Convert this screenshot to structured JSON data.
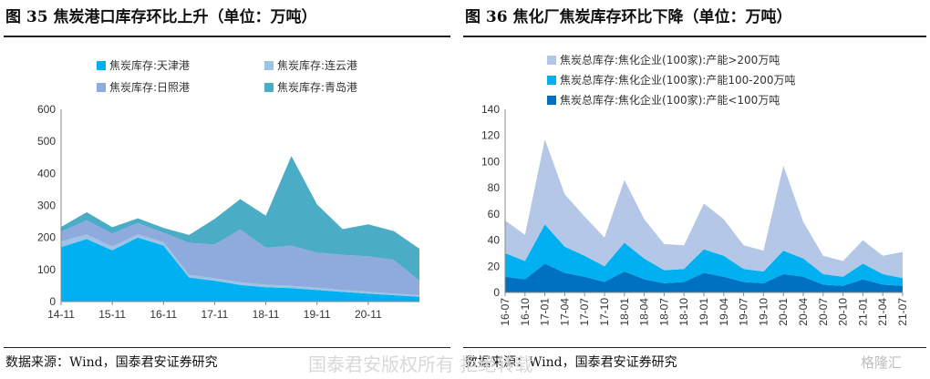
{
  "chart_data": [
    {
      "type": "area",
      "title": "图 35 焦炭港口库存环比上升（单位：万吨）",
      "source": "数据来源：Wind，国泰君安证券研究",
      "ylim": [
        0,
        600
      ],
      "yticks": [
        "0",
        "100",
        "200",
        "300",
        "400",
        "500",
        "600"
      ],
      "xticks": [
        "14-11",
        "15-11",
        "16-11",
        "17-11",
        "18-11",
        "19-11",
        "20-11"
      ],
      "x": [
        "14-11",
        "15-05",
        "15-11",
        "16-05",
        "16-11",
        "17-05",
        "17-11",
        "18-05",
        "18-11",
        "19-05",
        "19-11",
        "20-05",
        "20-11",
        "21-05",
        "21-08"
      ],
      "series": [
        {
          "name": "焦炭库存:天津港",
          "color": "#00B0F0",
          "values": [
            170,
            195,
            160,
            200,
            175,
            75,
            65,
            52,
            45,
            42,
            36,
            30,
            25,
            20,
            15
          ]
        },
        {
          "name": "焦炭库存:连云港",
          "color": "#9DC3E6",
          "values": [
            18,
            14,
            12,
            10,
            10,
            8,
            8,
            8,
            8,
            7,
            7,
            6,
            6,
            5,
            5
          ]
        },
        {
          "name": "焦炭库存:日照港",
          "color": "#8FAADC",
          "values": [
            30,
            45,
            40,
            35,
            30,
            100,
            105,
            165,
            115,
            125,
            110,
            110,
            110,
            105,
            45
          ]
        },
        {
          "name": "焦炭库存:青岛港",
          "color": "#4BACC6",
          "values": [
            15,
            25,
            20,
            15,
            15,
            25,
            80,
            95,
            100,
            280,
            150,
            80,
            100,
            90,
            100
          ]
        }
      ],
      "legend_position": "top"
    },
    {
      "type": "area",
      "title": "图 36 焦化厂焦炭库存环比下降（单位：万吨）",
      "source": "数据来源：Wind，国泰君安证券研究",
      "ylim": [
        0,
        140
      ],
      "yticks": [
        "0",
        "20",
        "40",
        "60",
        "80",
        "100",
        "120",
        "140"
      ],
      "xticks": [
        "16-07",
        "16-10",
        "17-01",
        "17-04",
        "17-07",
        "17-10",
        "18-01",
        "18-04",
        "18-07",
        "18-10",
        "19-01",
        "19-04",
        "19-07",
        "19-10",
        "20-01",
        "20-04",
        "20-07",
        "20-10",
        "21-01",
        "21-04",
        "21-07"
      ],
      "x": [
        "16-07",
        "16-10",
        "17-01",
        "17-04",
        "17-07",
        "17-10",
        "18-01",
        "18-04",
        "18-07",
        "18-10",
        "19-01",
        "19-04",
        "19-07",
        "19-10",
        "20-01",
        "20-04",
        "20-07",
        "20-10",
        "21-01",
        "21-04",
        "21-07"
      ],
      "series": [
        {
          "name": "焦炭总库存:焦化企业(100家):产能<100万吨",
          "color": "#0070C0",
          "values": [
            12,
            10,
            22,
            15,
            12,
            8,
            16,
            10,
            7,
            8,
            15,
            12,
            8,
            7,
            14,
            12,
            6,
            5,
            10,
            6,
            5
          ]
        },
        {
          "name": "焦炭总库存:焦化企业(100家):产能100-200万吨",
          "color": "#00B0F0",
          "values": [
            18,
            14,
            30,
            20,
            16,
            12,
            22,
            16,
            10,
            10,
            18,
            16,
            10,
            9,
            18,
            14,
            8,
            7,
            12,
            8,
            6
          ]
        },
        {
          "name": "焦炭总库存:焦化企业(100家):产能>200万吨",
          "color": "#B4C7E7",
          "values": [
            25,
            20,
            65,
            40,
            30,
            22,
            48,
            30,
            20,
            18,
            35,
            28,
            18,
            16,
            65,
            28,
            14,
            12,
            18,
            14,
            20
          ]
        }
      ],
      "legend_position": "top-left"
    }
  ],
  "watermark": "国泰君安版权所有 拒绝转载",
  "badge": "格隆汇"
}
